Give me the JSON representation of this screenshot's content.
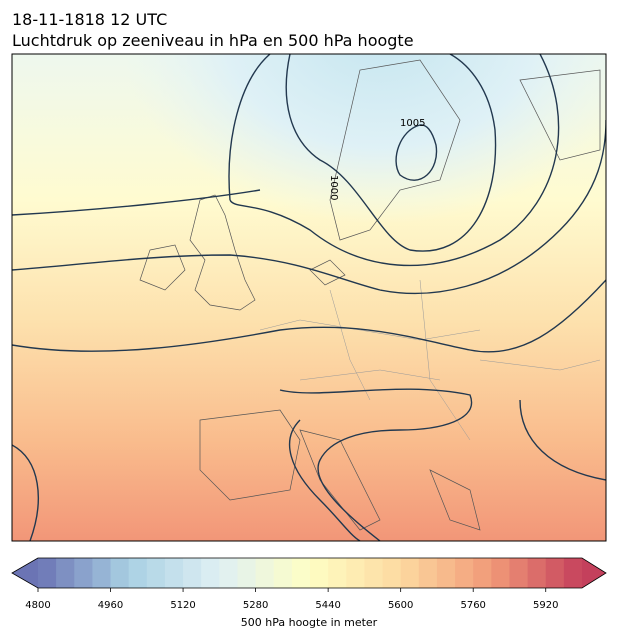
{
  "title": {
    "line1": "18-11-1818 12 UTC",
    "line2": "Luchtdruk op zeeniveau in hPa en 500 hPa hoogte"
  },
  "map": {
    "contour_labels": [
      "1005",
      "1000"
    ]
  },
  "colorbar": {
    "label": "500 hPa hoogte in meter",
    "range": [
      4800,
      6000
    ],
    "step": 40,
    "ticks": [
      4800,
      4960,
      5120,
      5280,
      5440,
      5600,
      5760,
      5920
    ],
    "colors": [
      "#6b74b4",
      "#a9d0e3",
      "#dff0f4",
      "#fefec4",
      "#fdd9a0",
      "#f19a78",
      "#c4405c"
    ]
  }
}
